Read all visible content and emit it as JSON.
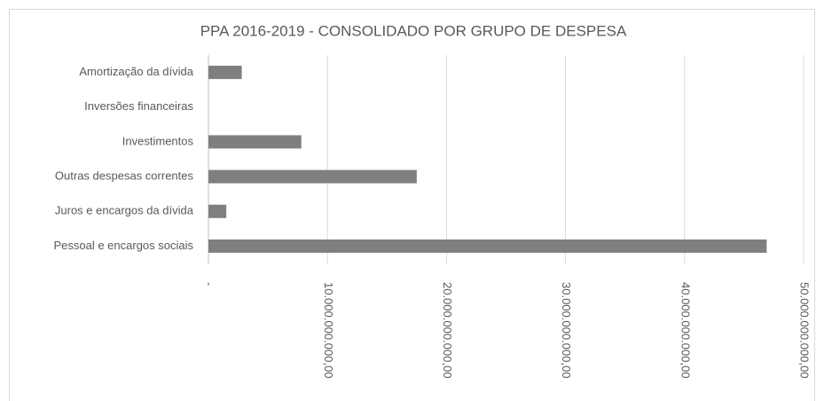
{
  "chart_data": {
    "type": "bar",
    "orientation": "horizontal",
    "title": "PPA 2016-2019 - CONSOLIDADO POR GRUPO DE DESPESA",
    "categories": [
      "Amortização da dívida",
      "Inversões financeiras",
      "Investimentos",
      "Outras despesas correntes",
      "Juros e encargos da dívida",
      "Pessoal e encargos sociais"
    ],
    "values": [
      2800000000,
      0,
      7800000000,
      17500000000,
      1500000000,
      46900000000
    ],
    "color": "#7f7f7f",
    "xlim": [
      0,
      50000000000
    ],
    "xticks": [
      {
        "value": 0,
        "label": "-"
      },
      {
        "value": 10000000000,
        "label": "10.000.000.000,00"
      },
      {
        "value": 20000000000,
        "label": "20.000.000.000,00"
      },
      {
        "value": 30000000000,
        "label": "30.000.000.000,00"
      },
      {
        "value": 40000000000,
        "label": "40.000.000.000,00"
      },
      {
        "value": 50000000000,
        "label": "50.000.000.000,00"
      }
    ],
    "grid": true
  }
}
